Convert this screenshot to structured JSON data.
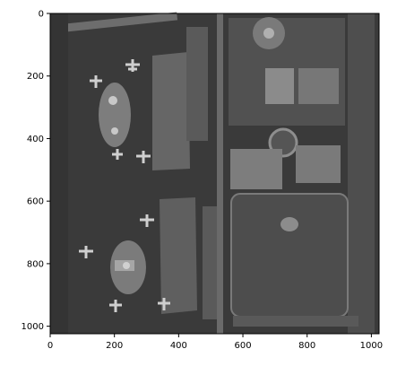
{
  "image": {
    "subject": "aerial-airport-grayscale",
    "xlim": [
      0,
      1024
    ],
    "ylim_top_to_bottom": [
      0,
      1024
    ],
    "background": "#3c3c3c",
    "frame_color": "#000000"
  },
  "axes": {
    "x_ticks": [
      {
        "value": 0,
        "label": "0"
      },
      {
        "value": 200,
        "label": "200"
      },
      {
        "value": 400,
        "label": "400"
      },
      {
        "value": 600,
        "label": "600"
      },
      {
        "value": 800,
        "label": "800"
      },
      {
        "value": 1000,
        "label": "1000"
      }
    ],
    "y_ticks": [
      {
        "value": 0,
        "label": "0"
      },
      {
        "value": 200,
        "label": "200"
      },
      {
        "value": 400,
        "label": "400"
      },
      {
        "value": 600,
        "label": "600"
      },
      {
        "value": 800,
        "label": "800"
      },
      {
        "value": 1000,
        "label": "1000"
      }
    ]
  }
}
